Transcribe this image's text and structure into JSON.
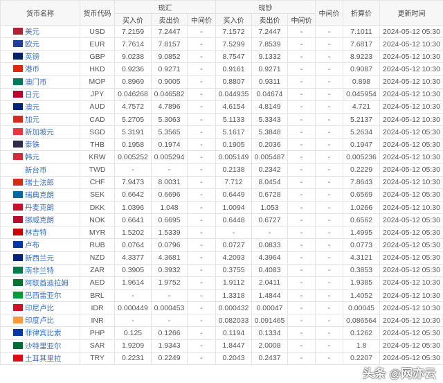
{
  "headers": {
    "name": "货币名称",
    "code": "货币代码",
    "spot_exchange": "现汇",
    "cash": "现钞",
    "buy": "买入价",
    "sell": "卖出价",
    "mid": "中间价",
    "middle": "中间价",
    "conversion": "折算价",
    "updated": "更新时间"
  },
  "flag_colors": {
    "USD": "#b22234",
    "EUR": "#1f3f99",
    "GBP": "#012169",
    "HKD": "#de2910",
    "MOP": "#00785e",
    "JPY": "#bc002d",
    "AUD": "#00247d",
    "CAD": "#d52b1e",
    "SGD": "#ef3340",
    "THB": "#2d2a4a",
    "KRW": "#cd2e3a",
    "TWD": "#ffffff",
    "CHF": "#d52b1e",
    "SEK": "#006aa7",
    "DKK": "#c8102e",
    "NOK": "#ba0c2f",
    "MYR": "#cc0001",
    "RUB": "#0039a6",
    "NZD": "#00247d",
    "ZAR": "#007a4d",
    "AED": "#00732f",
    "BRL": "#009c3b",
    "IDR": "#ce1126",
    "INR": "#ff9933",
    "PHP": "#0038a8",
    "SAR": "#006c35",
    "TRY": "#e30a17"
  },
  "rows": [
    [
      "美元",
      "USD",
      "7.2159",
      "7.2447",
      "-",
      "7.1572",
      "7.2447",
      "-",
      "-",
      "7.1011",
      "2024-05-12 05:30"
    ],
    [
      "欧元",
      "EUR",
      "7.7614",
      "7.8157",
      "-",
      "7.5299",
      "7.8539",
      "-",
      "-",
      "7.6817",
      "2024-05-12 10:30"
    ],
    [
      "英镑",
      "GBP",
      "9.0238",
      "9.0852",
      "-",
      "8.7547",
      "9.1332",
      "-",
      "-",
      "8.9223",
      "2024-05-12 10:30"
    ],
    [
      "港币",
      "HKD",
      "0.9236",
      "0.9271",
      "-",
      "0.9161",
      "0.9271",
      "-",
      "-",
      "0.9087",
      "2024-05-12 10:30"
    ],
    [
      "澳门币",
      "MOP",
      "0.8969",
      "0.9005",
      "-",
      "0.8807",
      "0.9311",
      "-",
      "-",
      "0.898",
      "2024-05-12 10:30"
    ],
    [
      "日元",
      "JPY",
      "0.046268",
      "0.046582",
      "-",
      "0.044935",
      "0.04674",
      "-",
      "-",
      "0.045954",
      "2024-05-12 10:30"
    ],
    [
      "澳元",
      "AUD",
      "4.7572",
      "4.7896",
      "-",
      "4.6154",
      "4.8149",
      "-",
      "-",
      "4.721",
      "2024-05-12 10:30"
    ],
    [
      "加元",
      "CAD",
      "5.2705",
      "5.3063",
      "-",
      "5.1133",
      "5.3343",
      "-",
      "-",
      "5.2137",
      "2024-05-12 10:30"
    ],
    [
      "新加坡元",
      "SGD",
      "5.3191",
      "5.3565",
      "-",
      "5.1617",
      "5.3848",
      "-",
      "-",
      "5.2634",
      "2024-05-12 05:30"
    ],
    [
      "泰铢",
      "THB",
      "0.1958",
      "0.1974",
      "-",
      "0.1905",
      "0.2036",
      "-",
      "-",
      "0.1947",
      "2024-05-12 05:30"
    ],
    [
      "韩元",
      "KRW",
      "0.005252",
      "0.005294",
      "-",
      "0.005149",
      "0.005487",
      "-",
      "-",
      "0.005236",
      "2024-05-12 10:30"
    ],
    [
      "新台币",
      "TWD",
      "-",
      "-",
      "-",
      "0.2138",
      "0.2342",
      "-",
      "-",
      "0.2229",
      "2024-05-12 05:30"
    ],
    [
      "瑞士法郎",
      "CHF",
      "7.9473",
      "8.0031",
      "-",
      "7.712",
      "8.0454",
      "-",
      "-",
      "7.8643",
      "2024-05-12 10:30"
    ],
    [
      "瑞典克朗",
      "SEK",
      "0.6642",
      "0.6696",
      "-",
      "0.6449",
      "0.6728",
      "-",
      "-",
      "0.6569",
      "2024-05-12 05:30"
    ],
    [
      "丹麦克朗",
      "DKK",
      "1.0396",
      "1.048",
      "-",
      "1.0094",
      "1.053",
      "-",
      "-",
      "1.0266",
      "2024-05-12 10:30"
    ],
    [
      "挪威克朗",
      "NOK",
      "0.6641",
      "0.6695",
      "-",
      "0.6448",
      "0.6727",
      "-",
      "-",
      "0.6562",
      "2024-05-12 05:30"
    ],
    [
      "林吉特",
      "MYR",
      "1.5202",
      "1.5339",
      "-",
      "-",
      "-",
      "-",
      "-",
      "1.4995",
      "2024-05-12 05:30"
    ],
    [
      "卢布",
      "RUB",
      "0.0764",
      "0.0796",
      "-",
      "0.0727",
      "0.0833",
      "-",
      "-",
      "0.0773",
      "2024-05-12 05:30"
    ],
    [
      "新西兰元",
      "NZD",
      "4.3377",
      "4.3681",
      "-",
      "4.2093",
      "4.3964",
      "-",
      "-",
      "4.3121",
      "2024-05-12 05:30"
    ],
    [
      "南非兰特",
      "ZAR",
      "0.3905",
      "0.3932",
      "-",
      "0.3755",
      "0.4083",
      "-",
      "-",
      "0.3853",
      "2024-05-12 05:30"
    ],
    [
      "阿联酋迪拉姆",
      "AED",
      "1.9614",
      "1.9752",
      "-",
      "1.9112",
      "2.0411",
      "-",
      "-",
      "1.9385",
      "2024-05-12 10:30"
    ],
    [
      "巴西雷亚尔",
      "BRL",
      "-",
      "-",
      "-",
      "1.3318",
      "1.4844",
      "-",
      "-",
      "1.4052",
      "2024-05-12 10:30"
    ],
    [
      "印尼卢比",
      "IDR",
      "0.000449",
      "0.000453",
      "-",
      "0.000432",
      "0.00047",
      "-",
      "-",
      "0.00045",
      "2024-05-12 10:30"
    ],
    [
      "印度卢比",
      "INR",
      "-",
      "-",
      "-",
      "0.082033",
      "0.091465",
      "-",
      "-",
      "0.086564",
      "2024-05-12 10:30"
    ],
    [
      "菲律宾比索",
      "PHP",
      "0.125",
      "0.1266",
      "-",
      "0.1194",
      "0.1334",
      "-",
      "-",
      "0.1262",
      "2024-05-12 05:30"
    ],
    [
      "沙特里亚尔",
      "SAR",
      "1.9209",
      "1.9343",
      "-",
      "1.8447",
      "2.0008",
      "-",
      "-",
      "1.8",
      "2024-05-12 05:30"
    ],
    [
      "土耳其里拉",
      "TRY",
      "0.2231",
      "0.2249",
      "-",
      "0.2043",
      "0.2437",
      "-",
      "-",
      "0.2207",
      "2024-05-12 05:30"
    ]
  ],
  "watermark": "头条 @网亦云"
}
